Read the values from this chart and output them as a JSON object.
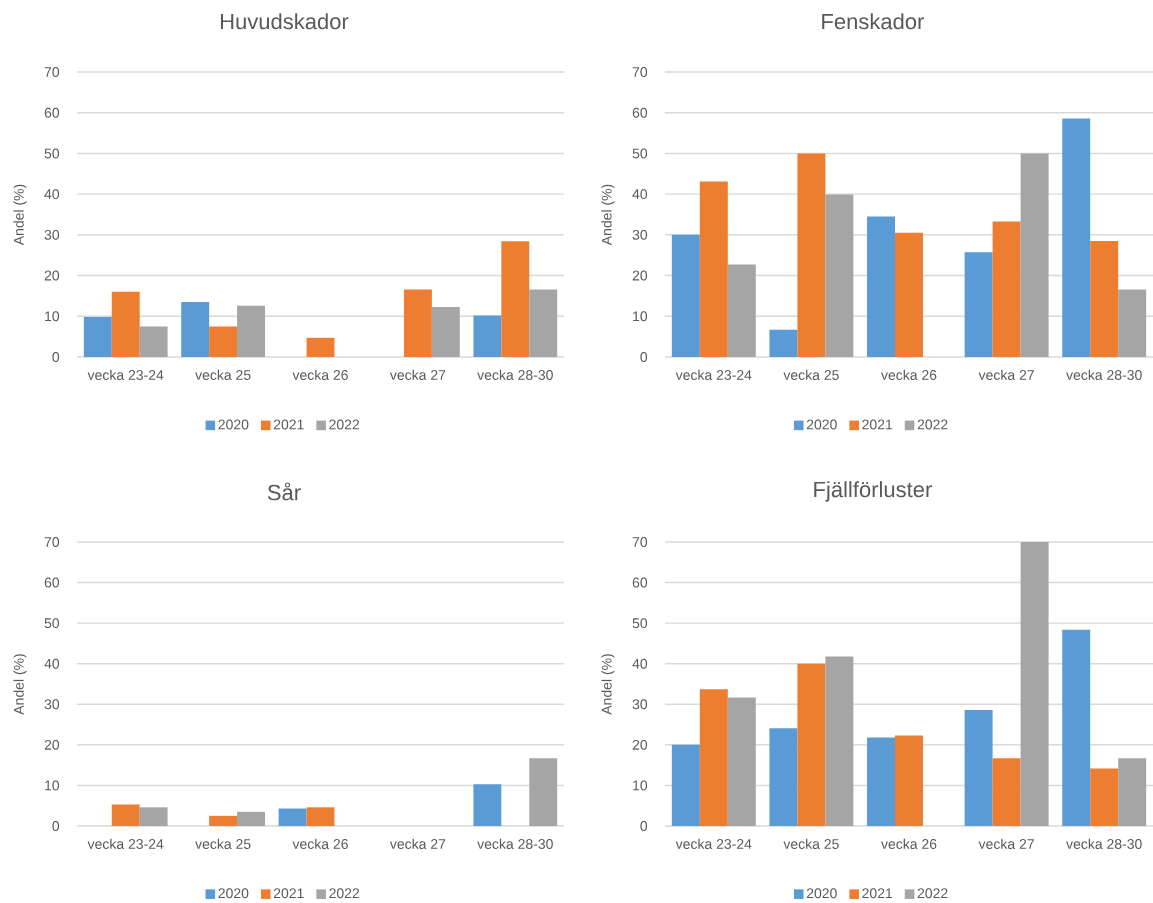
{
  "chart_data": [
    {
      "type": "bar",
      "title": "Huvudskador",
      "ylabel": "Andel (%)",
      "categories": [
        "vecka 23-24",
        "vecka 25",
        "vecka 26",
        "vecka 27",
        "vecka 28-30"
      ],
      "series": [
        {
          "name": "2020",
          "color": "#5b9bd5",
          "values": [
            9.8,
            13.5,
            null,
            null,
            10.2
          ]
        },
        {
          "name": "2021",
          "color": "#ed7d31",
          "values": [
            16.0,
            7.5,
            4.7,
            16.6,
            28.4
          ]
        },
        {
          "name": "2022",
          "color": "#a5a5a5",
          "values": [
            7.5,
            12.6,
            null,
            12.3,
            16.6
          ]
        }
      ],
      "ylim": [
        0,
        70
      ],
      "yticks": [
        0,
        10,
        20,
        30,
        40,
        50,
        60,
        70
      ],
      "grid": "y",
      "legend": "bottom"
    },
    {
      "type": "bar",
      "title": "Fenskador",
      "ylabel": "Andel (%)",
      "categories": [
        "vecka 23-24",
        "vecka 25",
        "vecka 26",
        "vecka 27",
        "vecka 28-30"
      ],
      "series": [
        {
          "name": "2020",
          "color": "#5b9bd5",
          "values": [
            30.0,
            6.7,
            34.5,
            25.7,
            58.6
          ]
        },
        {
          "name": "2021",
          "color": "#ed7d31",
          "values": [
            43.1,
            50.0,
            30.5,
            33.3,
            28.5
          ]
        },
        {
          "name": "2022",
          "color": "#a5a5a5",
          "values": [
            22.7,
            39.9,
            null,
            50.0,
            16.6
          ]
        }
      ],
      "ylim": [
        0,
        70
      ],
      "yticks": [
        0,
        10,
        20,
        30,
        40,
        50,
        60,
        70
      ],
      "grid": "y",
      "legend": "bottom"
    },
    {
      "type": "bar",
      "title": "Sår",
      "ylabel": "Andel (%)",
      "categories": [
        "vecka 23-24",
        "vecka 25",
        "vecka 26",
        "vecka 27",
        "vecka 28-30"
      ],
      "series": [
        {
          "name": "2020",
          "color": "#5b9bd5",
          "values": [
            null,
            null,
            4.3,
            null,
            10.3
          ]
        },
        {
          "name": "2021",
          "color": "#ed7d31",
          "values": [
            5.3,
            2.5,
            4.6,
            null,
            null
          ]
        },
        {
          "name": "2022",
          "color": "#a5a5a5",
          "values": [
            4.6,
            3.5,
            null,
            null,
            16.7
          ]
        }
      ],
      "ylim": [
        0,
        70
      ],
      "yticks": [
        0,
        10,
        20,
        30,
        40,
        50,
        60,
        70
      ],
      "grid": "y",
      "legend": "bottom"
    },
    {
      "type": "bar",
      "title": "Fjällförluster",
      "ylabel": "Andel (%)",
      "categories": [
        "vecka 23-24",
        "vecka 25",
        "vecka 26",
        "vecka 27",
        "vecka 28-30"
      ],
      "series": [
        {
          "name": "2020",
          "color": "#5b9bd5",
          "values": [
            20.0,
            24.1,
            21.8,
            28.6,
            48.4
          ]
        },
        {
          "name": "2021",
          "color": "#ed7d31",
          "values": [
            33.7,
            40.0,
            22.3,
            16.7,
            14.2
          ]
        },
        {
          "name": "2022",
          "color": "#a5a5a5",
          "values": [
            31.7,
            41.8,
            null,
            70,
            16.7
          ]
        }
      ],
      "ylim": [
        0,
        70
      ],
      "yticks": [
        0,
        10,
        20,
        30,
        40,
        50,
        60,
        70
      ],
      "grid": "y",
      "legend": "bottom"
    }
  ]
}
